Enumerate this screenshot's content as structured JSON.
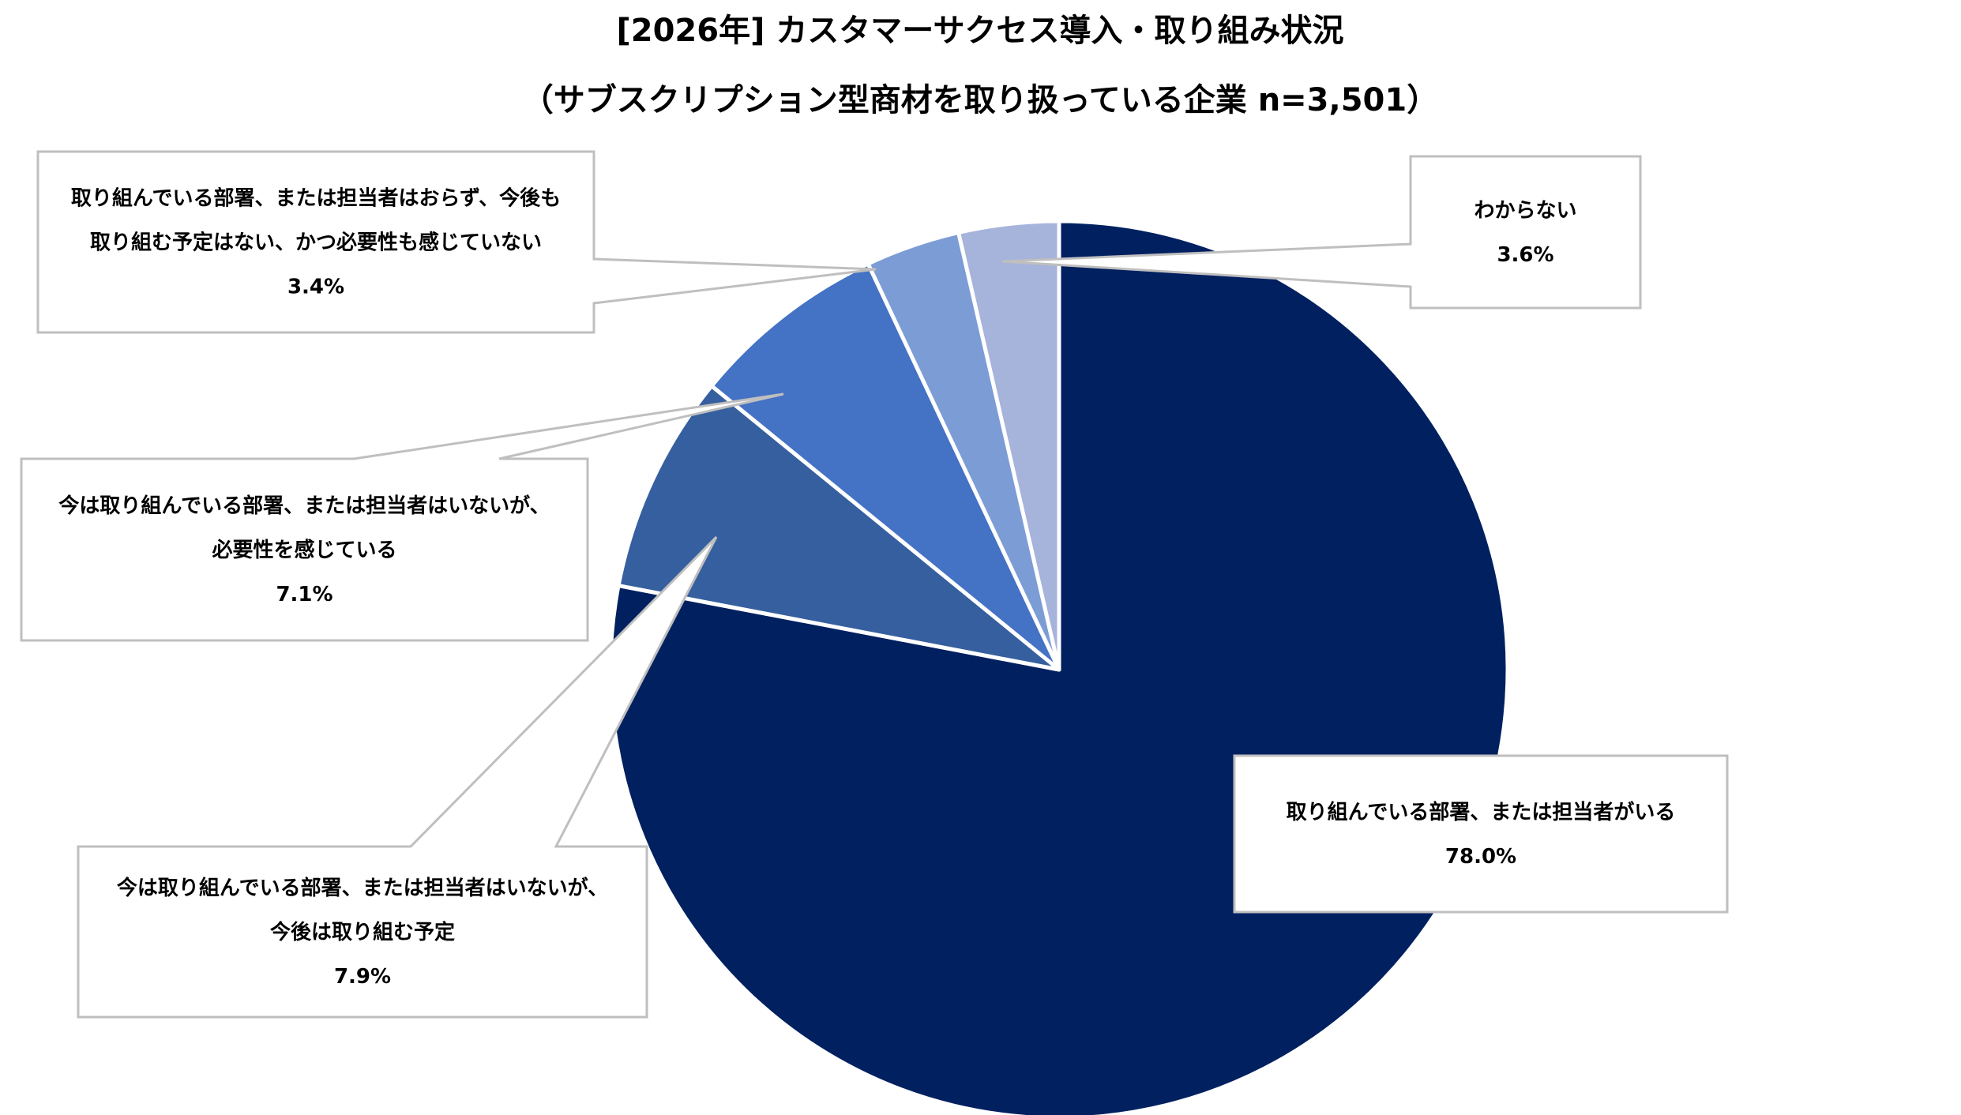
{
  "chart_data": {
    "type": "pie",
    "title": "[2026年] カスタマーサクセス導入・取り組み状況",
    "subtitle": "（サブスクリプション型商材を取り扱っている企業  n=3,501）",
    "start": "top",
    "direction": "clockwise",
    "slices": [
      {
        "label_lines": [
          "取り組んでいる部署、または担当者がいる"
        ],
        "value": 78.0,
        "value_label": "78.0%",
        "color": "#002060"
      },
      {
        "label_lines": [
          "今は取り組んでいる部署、または担当者はいないが、",
          "今後は取り組む予定"
        ],
        "value": 7.9,
        "value_label": "7.9%",
        "color": "#365F9F"
      },
      {
        "label_lines": [
          "今は取り組んでいる部署、または担当者はいないが、",
          "必要性を感じている"
        ],
        "value": 7.1,
        "value_label": "7.1%",
        "color": "#4472C4"
      },
      {
        "label_lines": [
          "取り組んでいる部署、または担当者はおらず、今後も",
          "取り組む予定はない、かつ必要性も感じていない"
        ],
        "value": 3.4,
        "value_label": "3.4%",
        "color": "#7C9CD6"
      },
      {
        "label_lines": [
          "わからない"
        ],
        "value": 3.6,
        "value_label": "3.6%",
        "color": "#A6B3DA"
      }
    ]
  }
}
